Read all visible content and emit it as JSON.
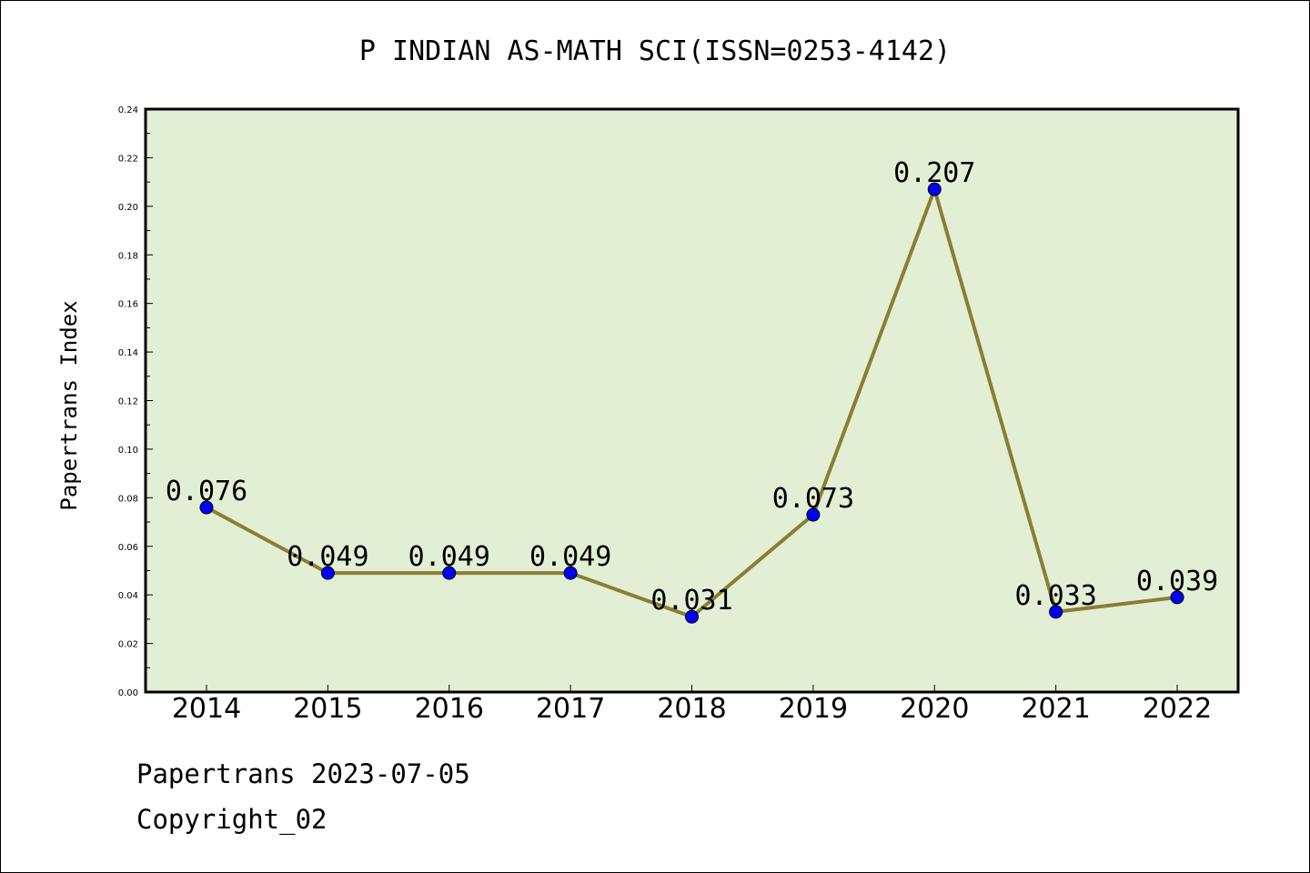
{
  "chart_data": {
    "type": "line",
    "title": "P INDIAN AS-MATH SCI(ISSN=0253-4142)",
    "xlabel": "",
    "ylabel": "Papertrans Index",
    "categories": [
      "2014",
      "2015",
      "2016",
      "2017",
      "2018",
      "2019",
      "2020",
      "2021",
      "2022"
    ],
    "series": [
      {
        "values": [
          0.076,
          0.049,
          0.049,
          0.049,
          0.031,
          0.073,
          0.207,
          0.033,
          0.039
        ]
      }
    ],
    "data_labels": [
      "0.076",
      "0.049",
      "0.049",
      "0.049",
      "0.031",
      "0.073",
      "0.207",
      "0.033",
      "0.039"
    ],
    "ylim": [
      0,
      0.24
    ],
    "yticks": [
      "0.00",
      "0.02",
      "0.04",
      "0.06",
      "0.08",
      "0.10",
      "0.12",
      "0.14",
      "0.16",
      "0.18",
      "0.20",
      "0.22",
      "0.24"
    ],
    "grid": false,
    "legend": "none",
    "colors": {
      "plot_background": "#e2efd4",
      "line": "#8b7d35",
      "marker": "#0000ff"
    }
  },
  "footer": {
    "date_line": "Papertrans 2023-07-05",
    "copyright": "Copyright_02"
  }
}
